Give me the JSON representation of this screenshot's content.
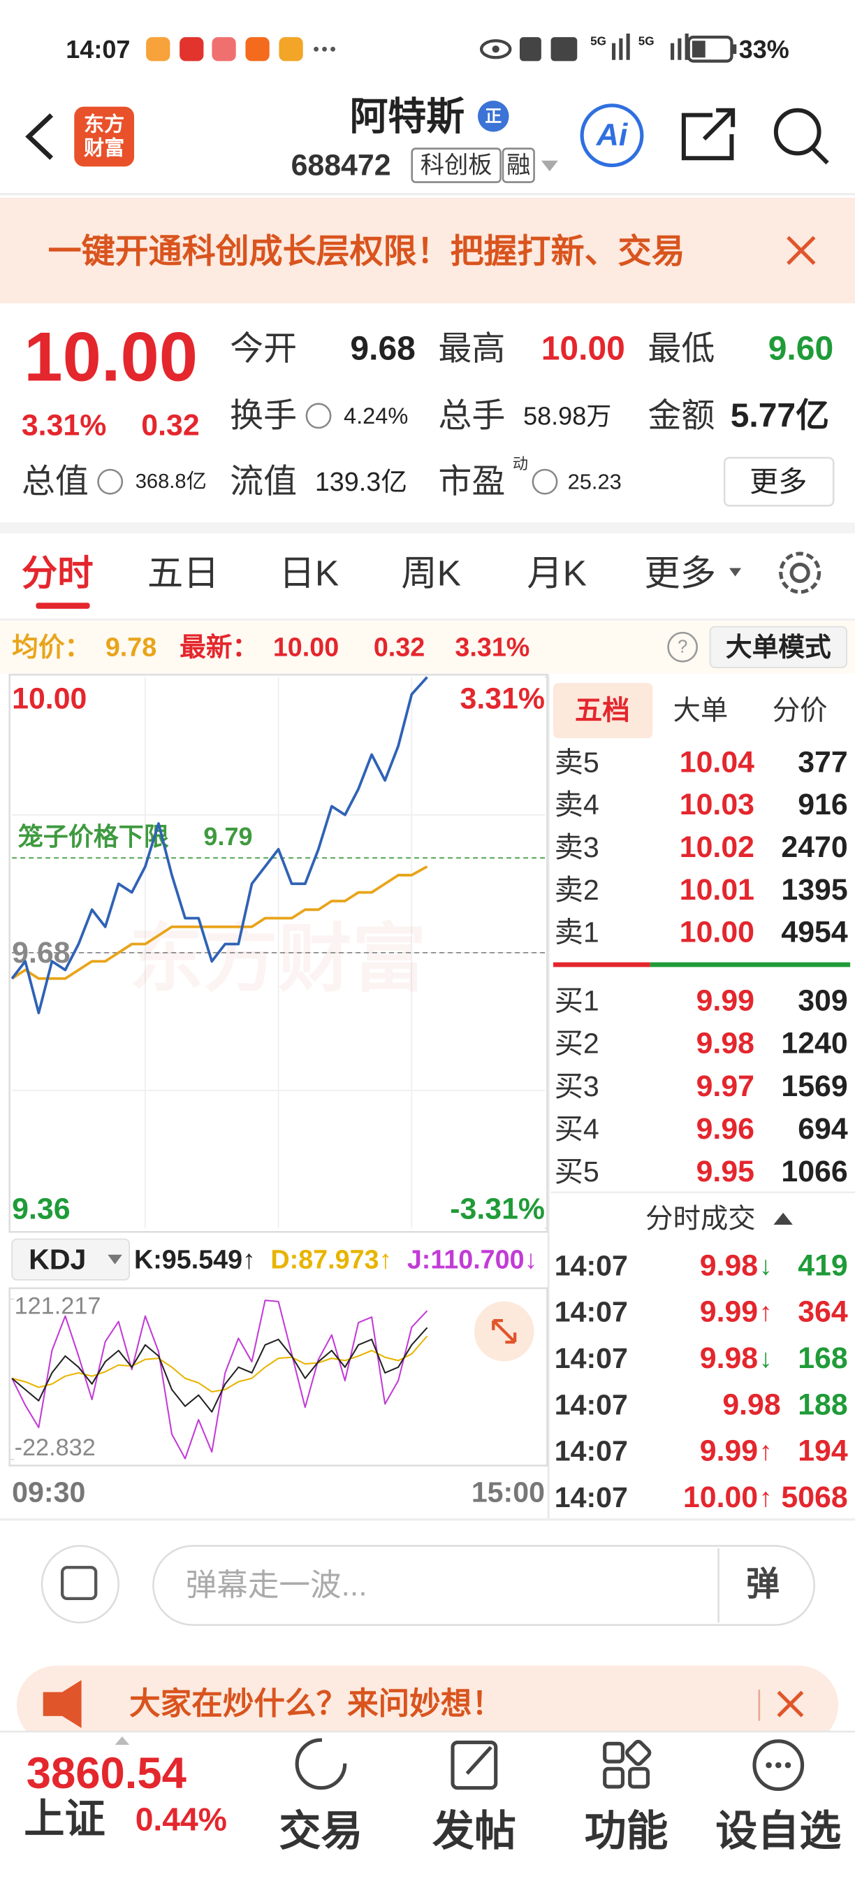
{
  "status_bar": {
    "time": "14:07",
    "network": [
      "5G",
      "5G"
    ],
    "battery": "33%"
  },
  "header": {
    "logo": [
      "东方",
      "财富"
    ],
    "name": "阿特斯",
    "badge": "正",
    "code": "688472",
    "board": "科创板",
    "margin": "融",
    "ai": "Ai"
  },
  "banner": {
    "text": "一键开通科创成长层权限！把握打新、交易"
  },
  "quote": {
    "price": "10.00",
    "change_pct": "3.31%",
    "change": "0.32",
    "fields": [
      {
        "label": "今开",
        "value": "9.68",
        "color": "#222222"
      },
      {
        "label": "最高",
        "value": "10.00",
        "color": "#e4262d"
      },
      {
        "label": "最低",
        "value": "9.60",
        "color": "#1f9b38"
      },
      {
        "label": "换手",
        "value": "4.24%",
        "color": "#222222"
      },
      {
        "label": "总手",
        "value": "58.98万",
        "color": "#222222"
      },
      {
        "label": "金额",
        "value": "5.77亿",
        "color": "#222222"
      },
      {
        "label": "总值",
        "value": "368.8亿",
        "color": "#222222"
      },
      {
        "label": "流值",
        "value": "139.3亿",
        "color": "#222222"
      },
      {
        "label": "市盈",
        "sup": "动",
        "value": "25.23",
        "color": "#222222"
      }
    ],
    "more": "更多"
  },
  "tabs": [
    "分时",
    "五日",
    "日K",
    "周K",
    "月K",
    "更多"
  ],
  "info_bar": {
    "avg": "9.78",
    "latest": "10.00",
    "change": "0.32",
    "change_pct": "3.31%",
    "help": "?",
    "mode": "大单模式"
  },
  "chart_data": [
    {
      "type": "line",
      "x": [
        "09:30",
        "09:36",
        "09:42",
        "09:48",
        "09:54",
        "10:00",
        "10:06",
        "10:12",
        "10:18",
        "10:24",
        "10:30",
        "10:36",
        "10:42",
        "10:48",
        "10:54",
        "11:00",
        "11:06",
        "11:12",
        "11:18",
        "11:24",
        "11:30",
        "13:06",
        "13:12",
        "13:18",
        "13:24",
        "13:30",
        "13:36",
        "13:42",
        "13:48",
        "13:54",
        "14:00",
        "14:07"
      ],
      "xlim": [
        "09:30",
        "15:00"
      ],
      "ylim": [
        9.36,
        10
      ],
      "yticks": [
        {
          "value": 10,
          "label": "10.00"
        },
        9.68,
        9.36
      ],
      "y2lim": [
        -3.31,
        3.31
      ],
      "y2ticks": [
        {
          "value": 3.31,
          "label": "3.31%"
        },
        {
          "value": -3.31,
          "label": "-3.31%"
        }
      ],
      "grid": true,
      "watermark": "东方财富",
      "cage": {
        "label": "笼子价格下限",
        "value": 9.79
      },
      "series": [
        {
          "name": "最新：",
          "color": "#2f62b5",
          "values": [
            9.65,
            9.67,
            9.61,
            9.67,
            9.66,
            9.69,
            9.73,
            9.71,
            9.76,
            9.75,
            9.78,
            9.83,
            9.77,
            9.72,
            9.72,
            9.67,
            9.69,
            9.69,
            9.76,
            9.78,
            9.8,
            9.76,
            9.76,
            9.8,
            9.85,
            9.84,
            9.87,
            9.91,
            9.88,
            9.92,
            9.98,
            10.0
          ]
        },
        {
          "name": "均价：",
          "color": "#e8a41a",
          "values": [
            9.65,
            9.66,
            9.65,
            9.65,
            9.65,
            9.66,
            9.67,
            9.67,
            9.68,
            9.69,
            9.69,
            9.7,
            9.71,
            9.71,
            9.71,
            9.71,
            9.71,
            9.71,
            9.71,
            9.72,
            9.72,
            9.72,
            9.73,
            9.73,
            9.74,
            9.74,
            9.75,
            9.75,
            9.76,
            9.77,
            9.77,
            9.78
          ]
        }
      ]
    },
    {
      "type": "line",
      "title": "KDJ",
      "ylim": [
        -22.832,
        121.217
      ],
      "yticks": [
        121.217,
        -22.832
      ],
      "series": [
        {
          "name": "K:95.549↑",
          "color": "#222222",
          "values": [
            50,
            40,
            30,
            55,
            70,
            60,
            45,
            65,
            75,
            60,
            80,
            70,
            40,
            25,
            35,
            20,
            45,
            60,
            55,
            80,
            85,
            70,
            50,
            65,
            75,
            60,
            80,
            85,
            55,
            60,
            80,
            95.549
          ]
        },
        {
          "name": "D:87.973↑",
          "color": "#e8b400",
          "values": [
            50,
            47,
            42,
            45,
            52,
            55,
            52,
            56,
            62,
            61,
            67,
            68,
            60,
            50,
            46,
            38,
            40,
            47,
            50,
            60,
            68,
            69,
            63,
            64,
            68,
            66,
            70,
            75,
            69,
            66,
            72,
            87.973
          ]
        },
        {
          "name": "J:110.700↓",
          "color": "#c23bd6",
          "values": [
            50,
            26,
            6,
            75,
            106,
            70,
            31,
            83,
            101,
            58,
            106,
            74,
            0,
            -22,
            13,
            -16,
            55,
            86,
            65,
            120,
            119,
            72,
            24,
            67,
            89,
            48,
            100,
            105,
            27,
            48,
            96,
            110.7
          ]
        }
      ]
    }
  ],
  "order_book": {
    "tabs": [
      "五档",
      "大单",
      "分价"
    ],
    "asks": [
      {
        "label": "卖5",
        "price": "10.04",
        "volume": "377"
      },
      {
        "label": "卖4",
        "price": "10.03",
        "volume": "916"
      },
      {
        "label": "卖3",
        "price": "10.02",
        "volume": "2470"
      },
      {
        "label": "卖2",
        "price": "10.01",
        "volume": "1395"
      },
      {
        "label": "卖1",
        "price": "10.00",
        "volume": "4954"
      }
    ],
    "bids": [
      {
        "label": "买1",
        "price": "9.99",
        "volume": "309"
      },
      {
        "label": "买2",
        "price": "9.98",
        "volume": "1240"
      },
      {
        "label": "买3",
        "price": "9.97",
        "volume": "1569"
      },
      {
        "label": "买4",
        "price": "9.96",
        "volume": "694"
      },
      {
        "label": "买5",
        "price": "9.95",
        "volume": "1066"
      }
    ]
  },
  "trades": {
    "title": "分时成交",
    "rows": [
      {
        "time": "14:07",
        "price": "9.98",
        "arrow": "↓",
        "volume": "419",
        "color": "#1f9b38"
      },
      {
        "time": "14:07",
        "price": "9.99",
        "arrow": "↑",
        "volume": "364",
        "color": "#e4262d"
      },
      {
        "time": "14:07",
        "price": "9.98",
        "arrow": "↓",
        "volume": "168",
        "color": "#1f9b38"
      },
      {
        "time": "14:07",
        "price": "9.98",
        "volume": "188",
        "color": "#1f9b38"
      },
      {
        "time": "14:07",
        "price": "9.99",
        "arrow": "↑",
        "volume": "194",
        "color": "#e4262d"
      },
      {
        "time": "14:07",
        "price": "10.00",
        "arrow": "↑",
        "volume": "5068",
        "color": "#e4262d"
      }
    ]
  },
  "comment_bar": {
    "placeholder": "弹幕走一波...",
    "button": "弹"
  },
  "promo": {
    "text": "大家在炒什么？来问妙想！"
  },
  "bottom_nav": {
    "index_value": "3860.54",
    "index_name": "上证",
    "index_change": "0.44%",
    "items": [
      "交易",
      "发帖",
      "功能",
      "设自选"
    ]
  }
}
